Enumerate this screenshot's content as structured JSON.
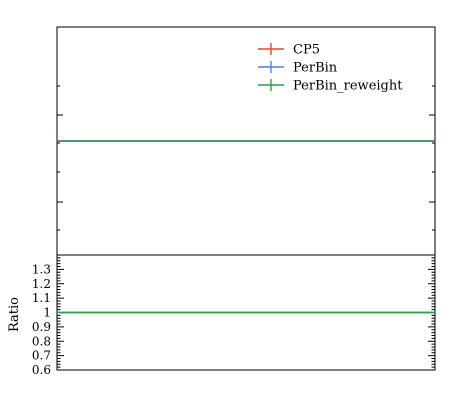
{
  "chart_data": [
    {
      "type": "line",
      "panel": "main",
      "xlabel": "",
      "ylabel": "",
      "x": [
        0,
        1
      ],
      "series": [
        {
          "name": "CP5",
          "color": "#e8472a",
          "values": [
            1,
            1
          ]
        },
        {
          "name": "PerBin",
          "color": "#4a7ff0",
          "values": [
            1,
            1
          ]
        },
        {
          "name": "PerBin_reweight",
          "color": "#2ea043",
          "values": [
            1,
            1
          ]
        }
      ],
      "ylim": [
        0,
        2
      ],
      "legend": "top-right",
      "grid": false
    },
    {
      "type": "line",
      "panel": "ratio",
      "ylabel": "Ratio",
      "x": [
        0,
        1
      ],
      "series": [
        {
          "name": "CP5",
          "color": "#e8472a",
          "values": [
            1,
            1
          ]
        },
        {
          "name": "PerBin",
          "color": "#4a7ff0",
          "values": [
            1,
            1
          ]
        },
        {
          "name": "PerBin_reweight",
          "color": "#2ea043",
          "values": [
            1,
            1
          ]
        }
      ],
      "ylim": [
        0.6,
        1.4
      ],
      "yticks": [
        0.6,
        0.7,
        0.8,
        0.9,
        1,
        1.1,
        1.2,
        1.3
      ],
      "ytick_labels": [
        "0.6",
        "0.7",
        "0.8",
        "0.9",
        "1",
        "1.1",
        "1.2",
        "1.3"
      ],
      "grid": false
    }
  ]
}
